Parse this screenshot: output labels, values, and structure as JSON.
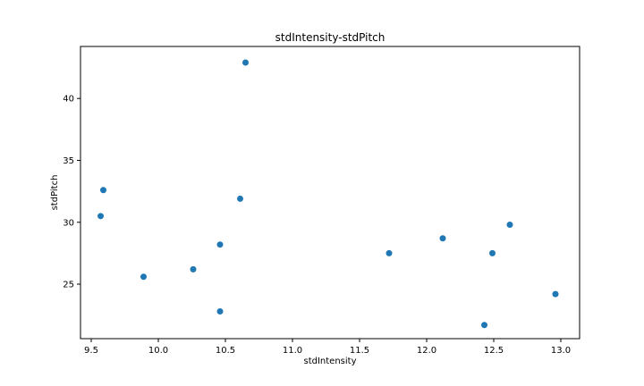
{
  "chart_data": {
    "type": "scatter",
    "title": "stdIntensity-stdPitch",
    "xlabel": "stdIntensity",
    "ylabel": "stdPitch",
    "xlim": [
      9.42,
      13.14
    ],
    "ylim": [
      20.6,
      44.2
    ],
    "xticks": [
      "9.5",
      "10.0",
      "10.5",
      "11.0",
      "11.5",
      "12.0",
      "12.5",
      "13.0"
    ],
    "yticks": [
      "25",
      "30",
      "35",
      "40"
    ],
    "grid": false,
    "point_color": "#1f77b4",
    "points": [
      {
        "x": 9.57,
        "y": 30.5
      },
      {
        "x": 9.59,
        "y": 32.6
      },
      {
        "x": 9.89,
        "y": 25.6
      },
      {
        "x": 10.26,
        "y": 26.2
      },
      {
        "x": 10.46,
        "y": 28.2
      },
      {
        "x": 10.46,
        "y": 22.8
      },
      {
        "x": 10.61,
        "y": 31.9
      },
      {
        "x": 10.65,
        "y": 42.9
      },
      {
        "x": 11.72,
        "y": 27.5
      },
      {
        "x": 12.12,
        "y": 28.7
      },
      {
        "x": 12.43,
        "y": 21.7
      },
      {
        "x": 12.49,
        "y": 27.5
      },
      {
        "x": 12.62,
        "y": 29.8
      },
      {
        "x": 12.96,
        "y": 24.2
      }
    ]
  }
}
